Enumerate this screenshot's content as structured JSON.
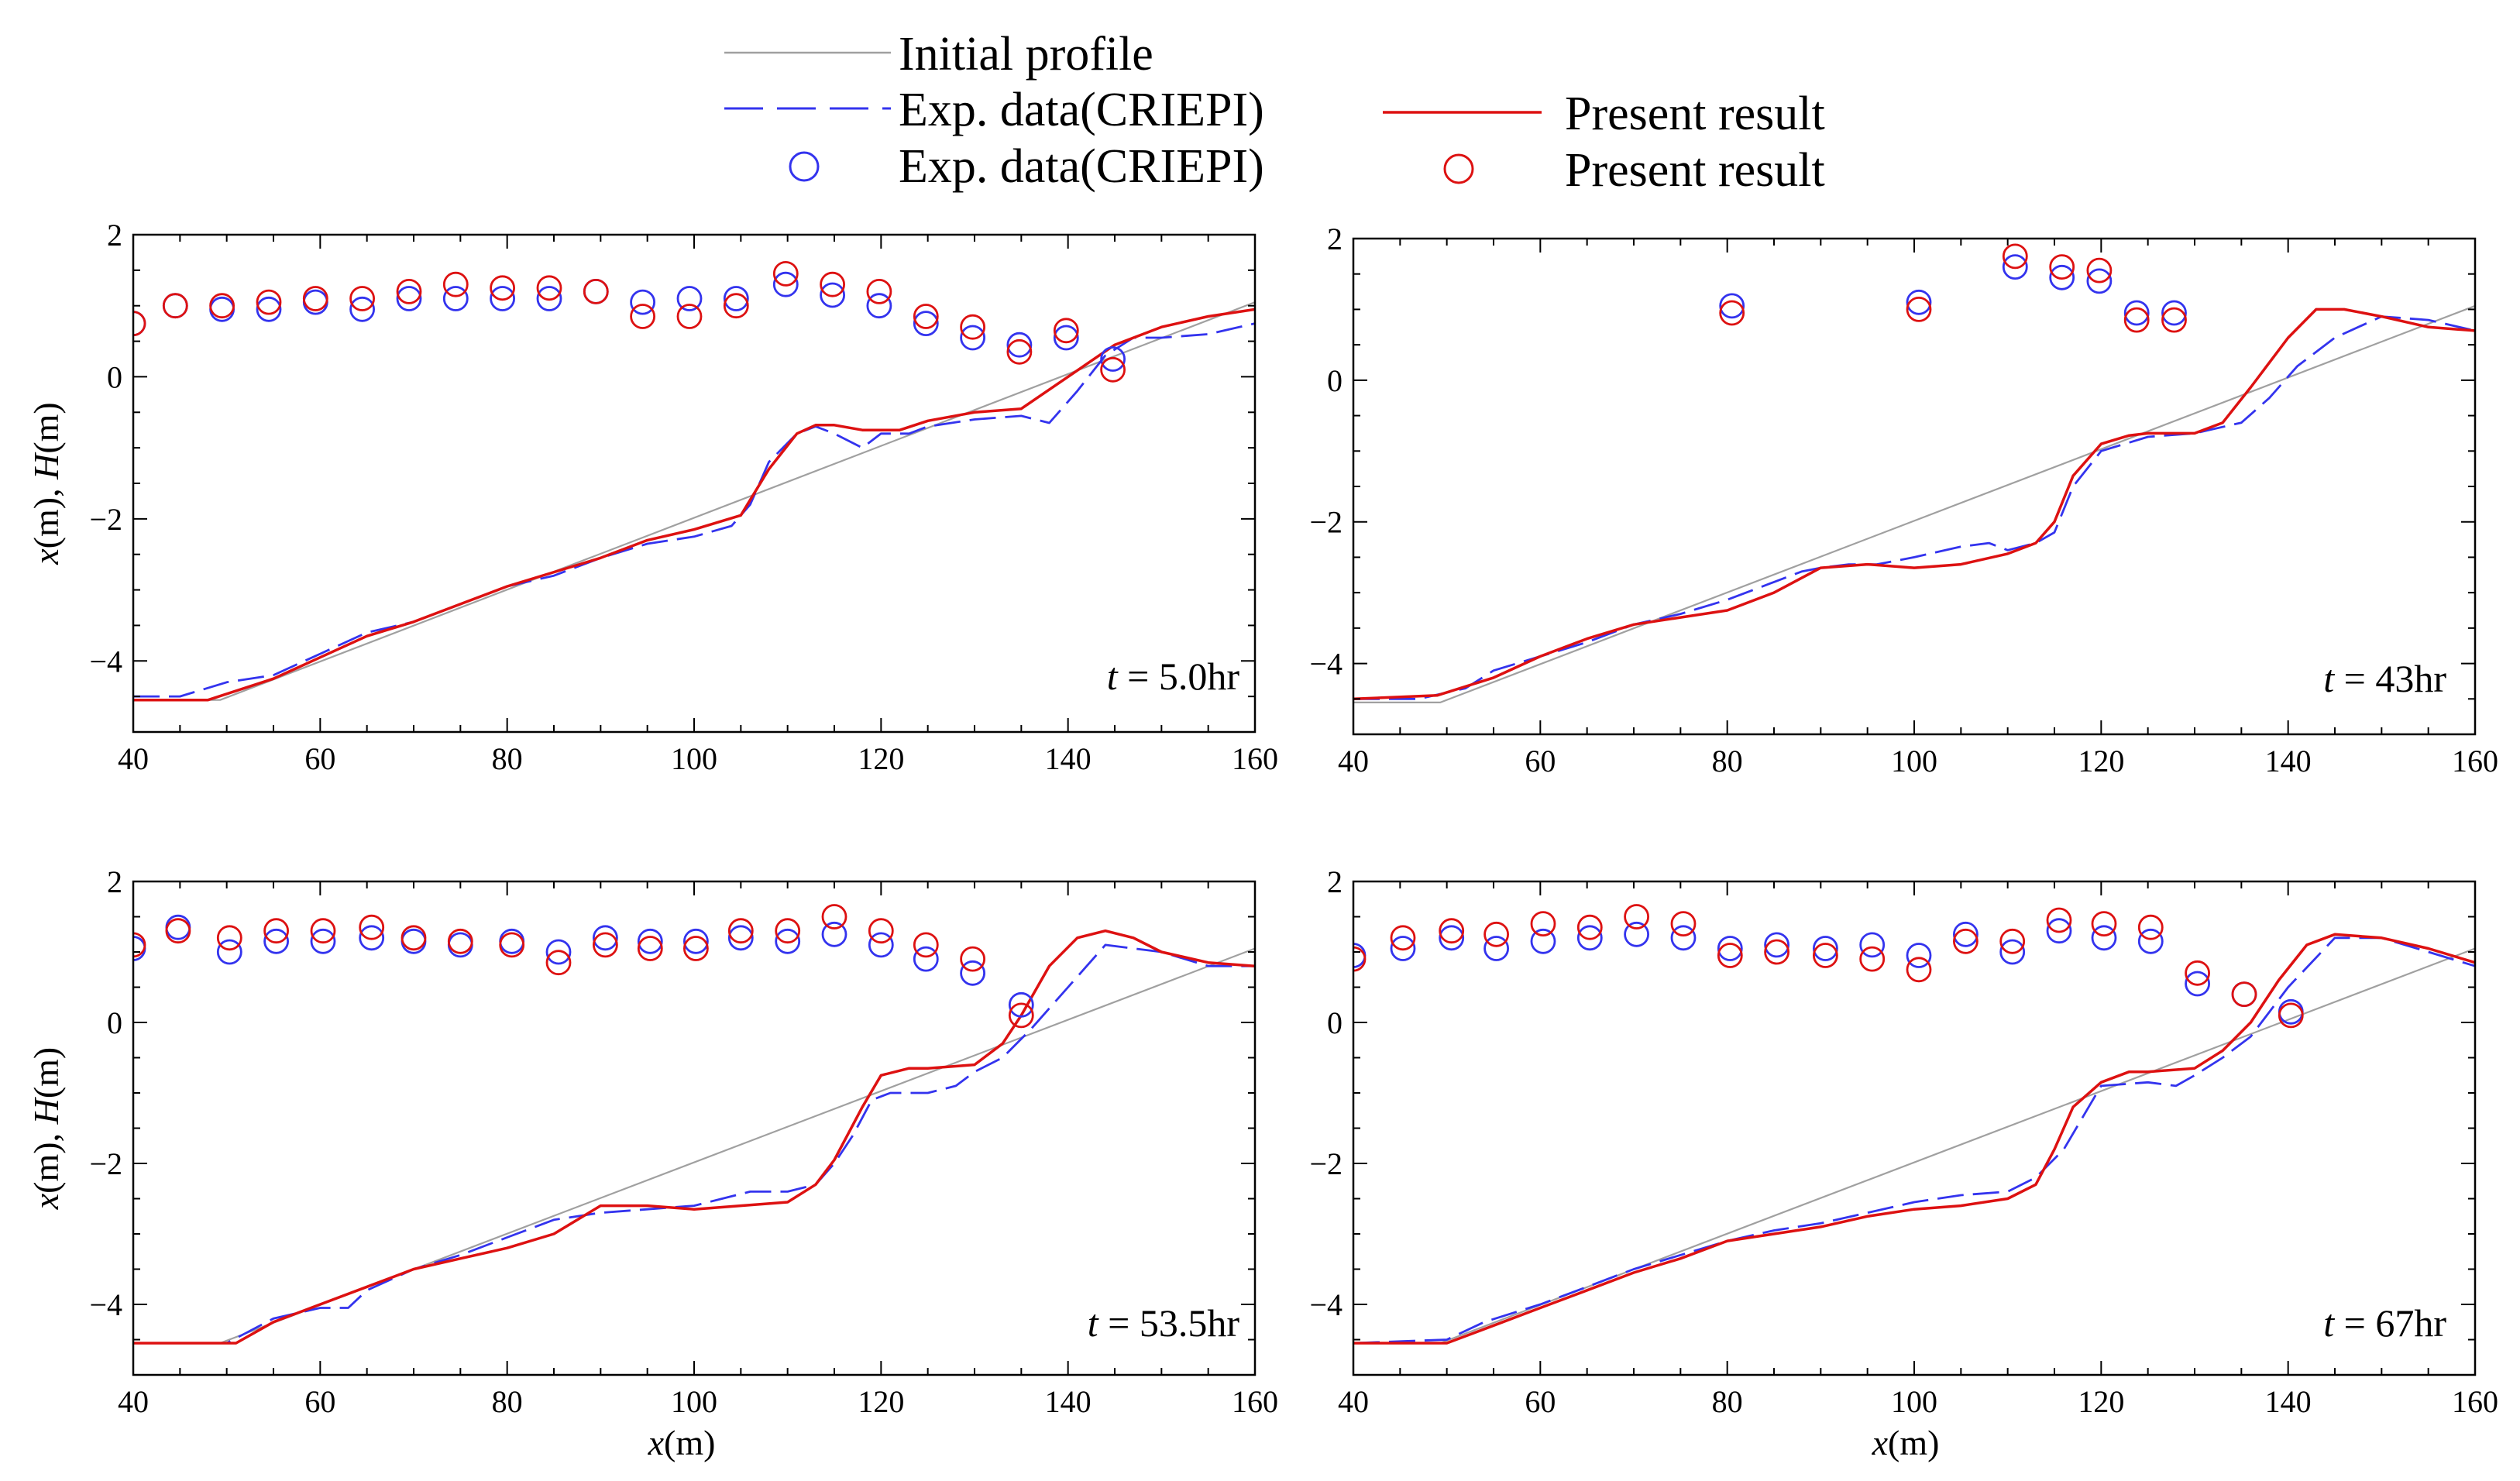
{
  "legend": {
    "initial": "Initial profile",
    "exp_line": "Exp. data(CRIEPI)",
    "exp_marker": "Exp. data(CRIEPI)",
    "present_line": "Present result",
    "present_marker": "Present result"
  },
  "colors": {
    "initial": "#a0a0a0",
    "exp": "#3333ee",
    "present": "#dd1111",
    "frame": "#000000"
  },
  "chart_data": [
    {
      "type": "line",
      "label_prefix": "t",
      "label_value": " = 5.0hr",
      "ylabel_main": "x",
      "ylabel_mid": "(m), ",
      "ylabel_italic2": "H",
      "ylabel_end": "(m)",
      "xlim": [
        40,
        160
      ],
      "ylim": [
        -5,
        2
      ],
      "xticks": [
        40,
        60,
        80,
        100,
        120,
        140,
        160
      ],
      "yticks": [
        2,
        0,
        -2,
        -4
      ],
      "ytick_labels": [
        "2",
        "0",
        "−2",
        "−4"
      ],
      "series": [
        {
          "name": "Initial profile",
          "x": [
            40,
            49.3,
            160
          ],
          "y": [
            -4.55,
            -4.55,
            1.05
          ]
        },
        {
          "name": "Exp. data(CRIEPI)",
          "x": [
            40,
            45,
            50,
            55,
            60,
            65,
            70,
            75,
            80,
            85,
            90,
            95,
            100,
            104,
            106,
            108,
            111,
            113,
            115,
            118,
            120,
            123,
            125,
            130,
            135,
            138,
            141,
            144,
            147,
            150,
            155,
            160
          ],
          "y": [
            -4.5,
            -4.5,
            -4.3,
            -4.2,
            -3.9,
            -3.6,
            -3.45,
            -3.2,
            -2.95,
            -2.8,
            -2.55,
            -2.35,
            -2.25,
            -2.1,
            -1.8,
            -1.2,
            -0.8,
            -0.7,
            -0.8,
            -1.0,
            -0.8,
            -0.8,
            -0.7,
            -0.6,
            -0.55,
            -0.65,
            -0.2,
            0.3,
            0.55,
            0.55,
            0.6,
            0.75
          ]
        },
        {
          "name": "Present result",
          "x": [
            40,
            48,
            55,
            60,
            65,
            70,
            75,
            80,
            90,
            95,
            100,
            105,
            108,
            111,
            113,
            115,
            118,
            122,
            125,
            130,
            135,
            140,
            145,
            150,
            155,
            160
          ],
          "y": [
            -4.55,
            -4.55,
            -4.25,
            -3.95,
            -3.65,
            -3.45,
            -3.2,
            -2.95,
            -2.55,
            -2.3,
            -2.15,
            -1.95,
            -1.3,
            -0.8,
            -0.68,
            -0.68,
            -0.75,
            -0.75,
            -0.62,
            -0.5,
            -0.45,
            0.0,
            0.45,
            0.7,
            0.85,
            0.95
          ]
        },
        {
          "name": "Exp. data(CRIEPI) markers",
          "x": [
            40,
            44.5,
            49.5,
            54.5,
            59.5,
            64.5,
            69.5,
            74.5,
            79.5,
            84.5,
            89.5,
            94.5,
            99.5,
            104.5,
            109.8,
            114.8,
            119.8,
            124.8,
            129.8,
            134.8,
            139.8,
            144.8
          ],
          "y": [
            0.75,
            1.0,
            0.95,
            0.95,
            1.05,
            0.95,
            1.1,
            1.1,
            1.1,
            1.1,
            1.2,
            1.05,
            1.1,
            1.1,
            1.3,
            1.15,
            1.0,
            0.75,
            0.55,
            0.45,
            0.55,
            0.25
          ]
        },
        {
          "name": "Present result markers",
          "x": [
            40,
            44.5,
            49.5,
            54.5,
            59.5,
            64.5,
            69.5,
            74.5,
            79.5,
            84.5,
            89.5,
            94.5,
            99.5,
            104.5,
            109.8,
            114.8,
            119.8,
            124.8,
            129.8,
            134.8,
            139.8,
            144.8
          ],
          "y": [
            0.75,
            1.0,
            1.0,
            1.05,
            1.1,
            1.1,
            1.2,
            1.3,
            1.25,
            1.25,
            1.2,
            0.85,
            0.85,
            1.0,
            1.45,
            1.3,
            1.2,
            0.85,
            0.7,
            0.35,
            0.65,
            0.1
          ]
        }
      ]
    },
    {
      "type": "line",
      "label_prefix": "t",
      "label_value": " = 43hr",
      "ylabel_main": "",
      "ylabel_mid": "",
      "ylabel_italic2": "",
      "ylabel_end": "",
      "xlim": [
        40,
        160
      ],
      "ylim": [
        -5,
        2
      ],
      "xticks": [
        40,
        60,
        80,
        100,
        120,
        140,
        160
      ],
      "yticks": [
        2,
        0,
        -2,
        -4
      ],
      "ytick_labels": [
        "2",
        "0",
        "−2",
        "−4"
      ],
      "series": [
        {
          "name": "Initial profile",
          "x": [
            40,
            49.3,
            160
          ],
          "y": [
            -4.55,
            -4.55,
            1.05
          ]
        },
        {
          "name": "Exp. data(CRIEPI)",
          "x": [
            40,
            47,
            52,
            55,
            60,
            65,
            70,
            75,
            80,
            85,
            88,
            90,
            93,
            96,
            100,
            105,
            108,
            110,
            113,
            115,
            117,
            120,
            125,
            130,
            135,
            138,
            141,
            145,
            150,
            155,
            160
          ],
          "y": [
            -4.5,
            -4.5,
            -4.35,
            -4.1,
            -3.9,
            -3.7,
            -3.45,
            -3.3,
            -3.1,
            -2.85,
            -2.7,
            -2.65,
            -2.6,
            -2.6,
            -2.5,
            -2.35,
            -2.3,
            -2.4,
            -2.3,
            -2.15,
            -1.5,
            -1.0,
            -0.8,
            -0.75,
            -0.6,
            -0.25,
            0.2,
            0.6,
            0.9,
            0.85,
            0.7
          ]
        },
        {
          "name": "Present result",
          "x": [
            40,
            49,
            55,
            60,
            65,
            70,
            75,
            80,
            85,
            90,
            95,
            100,
            105,
            110,
            113,
            115,
            117,
            120,
            123,
            125,
            130,
            133,
            136,
            140,
            143,
            146,
            150,
            155,
            160
          ],
          "y": [
            -4.5,
            -4.45,
            -4.2,
            -3.9,
            -3.65,
            -3.45,
            -3.35,
            -3.25,
            -3.0,
            -2.65,
            -2.6,
            -2.65,
            -2.6,
            -2.45,
            -2.3,
            -2.0,
            -1.35,
            -0.9,
            -0.78,
            -0.75,
            -0.75,
            -0.6,
            -0.1,
            0.6,
            1.0,
            1.0,
            0.9,
            0.75,
            0.7
          ]
        },
        {
          "name": "Exp. data(CRIEPI) markers",
          "x": [
            80.5,
            100.5,
            110.8,
            115.8,
            119.8,
            123.8,
            127.8
          ],
          "y": [
            1.05,
            1.1,
            1.6,
            1.45,
            1.4,
            0.95,
            0.95
          ]
        },
        {
          "name": "Present result markers",
          "x": [
            80.5,
            100.5,
            110.8,
            115.8,
            119.8,
            123.8,
            127.8
          ],
          "y": [
            0.95,
            1.0,
            1.75,
            1.6,
            1.55,
            0.85,
            0.85
          ]
        }
      ]
    },
    {
      "type": "line",
      "label_prefix": "t",
      "label_value": " = 53.5hr",
      "ylabel_main": "x",
      "ylabel_mid": "(m), ",
      "ylabel_italic2": "H",
      "ylabel_end": "(m)",
      "xlim": [
        40,
        160
      ],
      "ylim": [
        -5,
        2
      ],
      "xticks": [
        40,
        60,
        80,
        100,
        120,
        140,
        160
      ],
      "yticks": [
        2,
        0,
        -2,
        -4
      ],
      "ytick_labels": [
        "2",
        "0",
        "−2",
        "−4"
      ],
      "series": [
        {
          "name": "Initial profile",
          "x": [
            40,
            49.3,
            160
          ],
          "y": [
            -4.55,
            -4.55,
            1.05
          ]
        },
        {
          "name": "Exp. data(CRIEPI)",
          "x": [
            40,
            50,
            55,
            60,
            63,
            65,
            70,
            75,
            80,
            85,
            90,
            95,
            100,
            103,
            106,
            110,
            113,
            115,
            117,
            119,
            121,
            125,
            128,
            130,
            133,
            136,
            140,
            144,
            150,
            155,
            160
          ],
          "y": [
            -4.55,
            -4.55,
            -4.2,
            -4.05,
            -4.05,
            -3.8,
            -3.5,
            -3.3,
            -3.05,
            -2.8,
            -2.7,
            -2.65,
            -2.6,
            -2.5,
            -2.4,
            -2.4,
            -2.3,
            -2.0,
            -1.6,
            -1.1,
            -1.0,
            -1.0,
            -0.9,
            -0.7,
            -0.5,
            -0.1,
            0.5,
            1.1,
            1.0,
            0.8,
            0.8
          ]
        },
        {
          "name": "Present result",
          "x": [
            40,
            51,
            55,
            60,
            65,
            70,
            75,
            80,
            85,
            90,
            95,
            100,
            105,
            110,
            113,
            115,
            118,
            120,
            123,
            125,
            130,
            133,
            135,
            138,
            141,
            144,
            147,
            150,
            155,
            160
          ],
          "y": [
            -4.55,
            -4.55,
            -4.25,
            -4.0,
            -3.75,
            -3.5,
            -3.35,
            -3.2,
            -3.0,
            -2.6,
            -2.6,
            -2.65,
            -2.6,
            -2.55,
            -2.3,
            -1.95,
            -1.2,
            -0.75,
            -0.65,
            -0.65,
            -0.6,
            -0.3,
            0.1,
            0.8,
            1.2,
            1.3,
            1.2,
            1.0,
            0.85,
            0.8
          ]
        },
        {
          "name": "Exp. data(CRIEPI) markers",
          "x": [
            40,
            44.8,
            50.3,
            55.3,
            60.3,
            65.5,
            70.0,
            75.0,
            80.5,
            85.5,
            90.5,
            95.3,
            100.2,
            105.0,
            110.0,
            115.0,
            120.0,
            124.8,
            129.8,
            135.0
          ],
          "y": [
            1.05,
            1.35,
            1.0,
            1.15,
            1.15,
            1.2,
            1.15,
            1.1,
            1.15,
            1.0,
            1.2,
            1.15,
            1.15,
            1.2,
            1.15,
            1.25,
            1.1,
            0.9,
            0.7,
            0.25
          ]
        },
        {
          "name": "Present result markers",
          "x": [
            40,
            44.8,
            50.3,
            55.3,
            60.3,
            65.5,
            70.0,
            75.0,
            80.5,
            85.5,
            90.5,
            95.3,
            100.2,
            105.0,
            110.0,
            115.0,
            120.0,
            124.8,
            129.8,
            135.0
          ],
          "y": [
            1.1,
            1.3,
            1.2,
            1.3,
            1.3,
            1.35,
            1.2,
            1.15,
            1.1,
            0.85,
            1.1,
            1.05,
            1.05,
            1.3,
            1.3,
            1.5,
            1.3,
            1.1,
            0.9,
            0.1
          ]
        }
      ]
    },
    {
      "type": "line",
      "label_prefix": "t",
      "label_value": " = 67hr",
      "ylabel_main": "",
      "ylabel_mid": "",
      "ylabel_italic2": "",
      "ylabel_end": "",
      "xlim": [
        40,
        160
      ],
      "ylim": [
        -5,
        2
      ],
      "xticks": [
        40,
        60,
        80,
        100,
        120,
        140,
        160
      ],
      "yticks": [
        2,
        0,
        -2,
        -4
      ],
      "ytick_labels": [
        "2",
        "0",
        "−2",
        "−4"
      ],
      "series": [
        {
          "name": "Initial profile",
          "x": [
            40,
            49.3,
            160
          ],
          "y": [
            -4.55,
            -4.55,
            1.05
          ]
        },
        {
          "name": "Exp. data(CRIEPI)",
          "x": [
            40,
            50,
            54,
            60,
            65,
            70,
            75,
            80,
            85,
            90,
            95,
            100,
            105,
            110,
            113,
            116,
            118,
            120,
            125,
            128,
            130,
            133,
            136,
            140,
            145,
            150,
            155,
            160
          ],
          "y": [
            -4.55,
            -4.5,
            -4.25,
            -4.0,
            -3.75,
            -3.5,
            -3.3,
            -3.1,
            -2.95,
            -2.85,
            -2.7,
            -2.55,
            -2.45,
            -2.4,
            -2.2,
            -1.8,
            -1.35,
            -0.9,
            -0.85,
            -0.9,
            -0.75,
            -0.5,
            -0.2,
            0.5,
            1.2,
            1.2,
            1.0,
            0.8
          ]
        },
        {
          "name": "Present result",
          "x": [
            40,
            50,
            55,
            60,
            65,
            70,
            75,
            80,
            85,
            90,
            95,
            100,
            105,
            110,
            113,
            115,
            117,
            120,
            123,
            125,
            130,
            133,
            136,
            139,
            142,
            145,
            150,
            155,
            160
          ],
          "y": [
            -4.55,
            -4.55,
            -4.3,
            -4.05,
            -3.8,
            -3.55,
            -3.35,
            -3.1,
            -3.0,
            -2.9,
            -2.75,
            -2.65,
            -2.6,
            -2.5,
            -2.3,
            -1.8,
            -1.2,
            -0.85,
            -0.7,
            -0.7,
            -0.65,
            -0.4,
            0.0,
            0.6,
            1.1,
            1.25,
            1.2,
            1.05,
            0.85
          ]
        },
        {
          "name": "Exp. data(CRIEPI) markers",
          "x": [
            40,
            45.3,
            50.5,
            55.3,
            60.3,
            65.3,
            70.3,
            75.3,
            80.3,
            85.3,
            90.5,
            95.5,
            100.5,
            105.5,
            110.5,
            115.5,
            120.3,
            125.3,
            130.3,
            135.3,
            140.3
          ],
          "y": [
            0.95,
            1.05,
            1.2,
            1.05,
            1.15,
            1.2,
            1.25,
            1.2,
            1.05,
            1.1,
            1.05,
            1.1,
            0.95,
            1.25,
            1.0,
            1.3,
            1.2,
            1.15,
            0.55,
            0.4,
            0.15
          ]
        },
        {
          "name": "Present result markers",
          "x": [
            40,
            45.3,
            50.5,
            55.3,
            60.3,
            65.3,
            70.3,
            75.3,
            80.3,
            85.3,
            90.5,
            95.5,
            100.5,
            105.5,
            110.5,
            115.5,
            120.3,
            125.3,
            130.3,
            135.3,
            140.3
          ],
          "y": [
            0.9,
            1.2,
            1.3,
            1.25,
            1.4,
            1.35,
            1.5,
            1.4,
            0.95,
            1.0,
            0.95,
            0.9,
            0.75,
            1.15,
            1.15,
            1.45,
            1.4,
            1.35,
            0.7,
            0.4,
            0.1
          ]
        }
      ]
    }
  ],
  "xlabel_main": "x",
  "xlabel_unit": "(m)"
}
